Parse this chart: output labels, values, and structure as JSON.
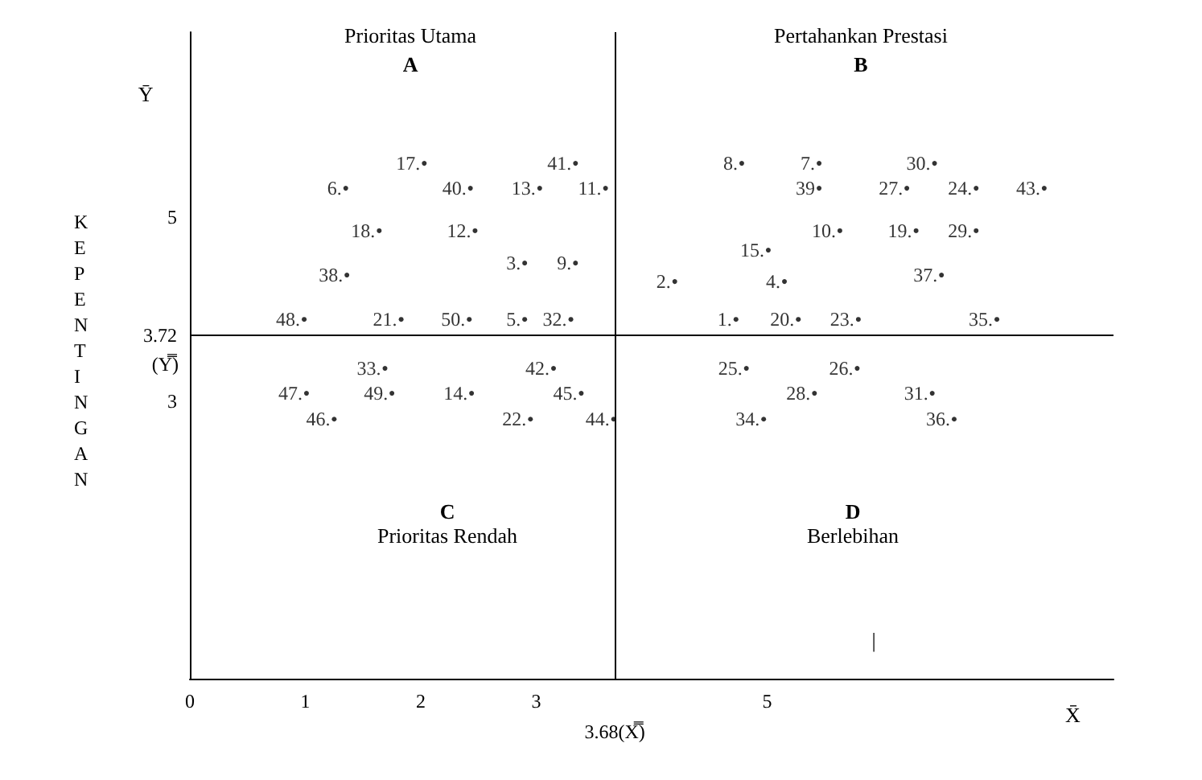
{
  "chart_data": {
    "type": "scatter",
    "xlabel": "X̄",
    "ylabel": "Ȳ",
    "xlim": [
      0,
      8
    ],
    "ylim": [
      0,
      7
    ],
    "xticks": [
      0,
      1,
      2,
      3,
      5
    ],
    "yticks": [
      3,
      3.72,
      5
    ],
    "grid": false,
    "legend": false,
    "marker": "circle",
    "series": [
      {
        "name": "17.",
        "color": "#000000",
        "x": [
          2.03
        ],
        "values": [
          5.58
        ]
      },
      {
        "name": "41.",
        "color": "#000000",
        "x": [
          3.34
        ],
        "values": [
          5.58
        ]
      },
      {
        "name": "6.",
        "color": "#000000",
        "x": [
          1.35
        ],
        "values": [
          5.31
        ]
      },
      {
        "name": "40.",
        "color": "#000000",
        "x": [
          2.43
        ],
        "values": [
          5.31
        ]
      },
      {
        "name": "13.",
        "color": "#000000",
        "x": [
          3.03
        ],
        "values": [
          5.31
        ]
      },
      {
        "name": "11.",
        "color": "#000000",
        "x": [
          3.6
        ],
        "values": [
          5.31
        ]
      },
      {
        "name": "18.",
        "color": "#000000",
        "x": [
          1.64
        ],
        "values": [
          4.85
        ]
      },
      {
        "name": "12.",
        "color": "#000000",
        "x": [
          2.47
        ],
        "values": [
          4.85
        ]
      },
      {
        "name": "38.",
        "color": "#000000",
        "x": [
          1.36
        ],
        "values": [
          4.37
        ]
      },
      {
        "name": "3.",
        "color": "#000000",
        "x": [
          2.9
        ],
        "values": [
          4.5
        ]
      },
      {
        "name": "9.",
        "color": "#000000",
        "x": [
          3.34
        ],
        "values": [
          4.5
        ]
      },
      {
        "name": "48.",
        "color": "#000000",
        "x": [
          0.99
        ],
        "values": [
          3.89
        ]
      },
      {
        "name": "21.",
        "color": "#000000",
        "x": [
          1.83
        ],
        "values": [
          3.89
        ]
      },
      {
        "name": "50.",
        "color": "#000000",
        "x": [
          2.42
        ],
        "values": [
          3.89
        ]
      },
      {
        "name": "5.",
        "color": "#000000",
        "x": [
          2.9
        ],
        "values": [
          3.89
        ]
      },
      {
        "name": "32.",
        "color": "#000000",
        "x": [
          3.3
        ],
        "values": [
          3.89
        ]
      },
      {
        "name": "8.",
        "color": "#000000",
        "x": [
          4.78
        ],
        "values": [
          5.58
        ]
      },
      {
        "name": "7.",
        "color": "#000000",
        "x": [
          5.45
        ],
        "values": [
          5.58
        ]
      },
      {
        "name": "30.",
        "color": "#000000",
        "x": [
          6.45
        ],
        "values": [
          5.58
        ]
      },
      {
        "name": "39",
        "color": "#000000",
        "x": [
          5.45
        ],
        "values": [
          5.31
        ]
      },
      {
        "name": "27.",
        "color": "#000000",
        "x": [
          6.21
        ],
        "values": [
          5.31
        ]
      },
      {
        "name": "24.",
        "color": "#000000",
        "x": [
          6.81
        ],
        "values": [
          5.31
        ]
      },
      {
        "name": "43.",
        "color": "#000000",
        "x": [
          7.4
        ],
        "values": [
          5.31
        ]
      },
      {
        "name": "10.",
        "color": "#000000",
        "x": [
          5.63
        ],
        "values": [
          4.85
        ]
      },
      {
        "name": "19.",
        "color": "#000000",
        "x": [
          6.29
        ],
        "values": [
          4.85
        ]
      },
      {
        "name": "29.",
        "color": "#000000",
        "x": [
          6.81
        ],
        "values": [
          4.85
        ]
      },
      {
        "name": "15.",
        "color": "#000000",
        "x": [
          5.01
        ],
        "values": [
          4.64
        ]
      },
      {
        "name": "2.",
        "color": "#000000",
        "x": [
          4.2
        ],
        "values": [
          4.3
        ]
      },
      {
        "name": "4.",
        "color": "#000000",
        "x": [
          5.15
        ],
        "values": [
          4.3
        ]
      },
      {
        "name": "37.",
        "color": "#000000",
        "x": [
          6.51
        ],
        "values": [
          4.37
        ]
      },
      {
        "name": "1.",
        "color": "#000000",
        "x": [
          4.73
        ],
        "values": [
          3.89
        ]
      },
      {
        "name": "20.",
        "color": "#000000",
        "x": [
          5.27
        ],
        "values": [
          3.89
        ]
      },
      {
        "name": "23.",
        "color": "#000000",
        "x": [
          5.79
        ],
        "values": [
          3.89
        ]
      },
      {
        "name": "35.",
        "color": "#000000",
        "x": [
          6.99
        ],
        "values": [
          3.89
        ]
      },
      {
        "name": "33.",
        "color": "#000000",
        "x": [
          1.69
        ],
        "values": [
          3.36
        ]
      },
      {
        "name": "42.",
        "color": "#000000",
        "x": [
          3.15
        ],
        "values": [
          3.36
        ]
      },
      {
        "name": "47.",
        "color": "#000000",
        "x": [
          1.01
        ],
        "values": [
          3.09
        ]
      },
      {
        "name": "49.",
        "color": "#000000",
        "x": [
          1.75
        ],
        "values": [
          3.09
        ]
      },
      {
        "name": "14.",
        "color": "#000000",
        "x": [
          2.44
        ],
        "values": [
          3.09
        ]
      },
      {
        "name": "45.",
        "color": "#000000",
        "x": [
          3.39
        ],
        "values": [
          3.09
        ]
      },
      {
        "name": "46.",
        "color": "#000000",
        "x": [
          1.25
        ],
        "values": [
          2.81
        ]
      },
      {
        "name": "22.",
        "color": "#000000",
        "x": [
          2.95
        ],
        "values": [
          2.81
        ]
      },
      {
        "name": "44.",
        "color": "#000000",
        "x": [
          3.67
        ],
        "values": [
          2.81
        ]
      },
      {
        "name": "25.",
        "color": "#000000",
        "x": [
          4.82
        ],
        "values": [
          3.36
        ]
      },
      {
        "name": "26.",
        "color": "#000000",
        "x": [
          5.78
        ],
        "values": [
          3.36
        ]
      },
      {
        "name": "28.",
        "color": "#000000",
        "x": [
          5.41
        ],
        "values": [
          3.09
        ]
      },
      {
        "name": "31.",
        "color": "#000000",
        "x": [
          6.43
        ],
        "values": [
          3.09
        ]
      },
      {
        "name": "34.",
        "color": "#000000",
        "x": [
          4.97
        ],
        "values": [
          2.81
        ]
      },
      {
        "name": "36.",
        "color": "#000000",
        "x": [
          6.62
        ],
        "values": [
          2.81
        ]
      }
    ],
    "ref_lines": [
      {
        "axis": "x",
        "value": 3.68,
        "label": "3.68(X̿)",
        "color": "#000000"
      },
      {
        "axis": "y",
        "value": 3.72,
        "label": "(Y̿)",
        "color": "#000000"
      }
    ],
    "annotations": [
      "KEPENTINGAN",
      "Prioritas Utama",
      "A",
      "Pertahankan Prestasi",
      "B",
      "C",
      "Prioritas Rendah",
      "D",
      "Berlebihan",
      "|"
    ]
  }
}
